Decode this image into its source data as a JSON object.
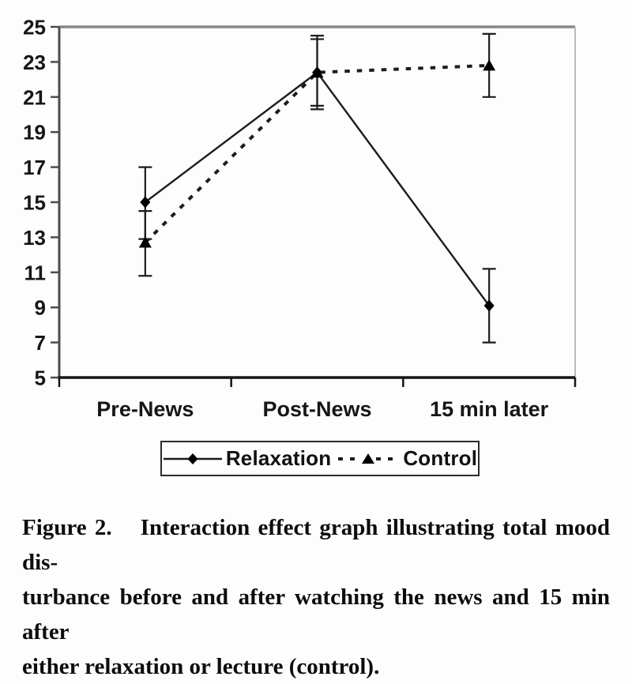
{
  "caption": {
    "label": "Figure 2.",
    "line1_rest": "Interaction effect graph illustrating total mood dis-",
    "line2": "turbance before and after watching the news and 15 min after",
    "line3": "either relaxation or lecture (control)."
  },
  "chart_data": {
    "type": "line",
    "title": "",
    "xlabel": "",
    "ylabel": "",
    "categories": [
      "Pre-News",
      "Post-News",
      "15 min later"
    ],
    "ylim": [
      5,
      25
    ],
    "yticks": [
      25,
      23,
      21,
      19,
      17,
      15,
      13,
      11,
      9,
      7,
      5
    ],
    "grid": false,
    "legend_position": "bottom-boxed",
    "colors": {
      "series": "#1c1c1c",
      "axis": "#4d4d4d",
      "x_axis": "#151515",
      "plot_border_top": "#878787",
      "plot_border_right": "#bababa",
      "background": "#fdfdfd"
    },
    "series": [
      {
        "name": "Relaxation",
        "marker": "diamond",
        "line": "solid",
        "values": [
          15.0,
          22.4,
          9.1
        ],
        "error_low": [
          12.9,
          20.3,
          7.0
        ],
        "error_high": [
          17.0,
          24.5,
          11.2
        ]
      },
      {
        "name": "Control",
        "marker": "triangle",
        "line": "dashed",
        "values": [
          12.7,
          22.4,
          22.8
        ],
        "error_low": [
          10.8,
          20.5,
          21.0
        ],
        "error_high": [
          14.5,
          24.3,
          24.6
        ]
      }
    ]
  }
}
